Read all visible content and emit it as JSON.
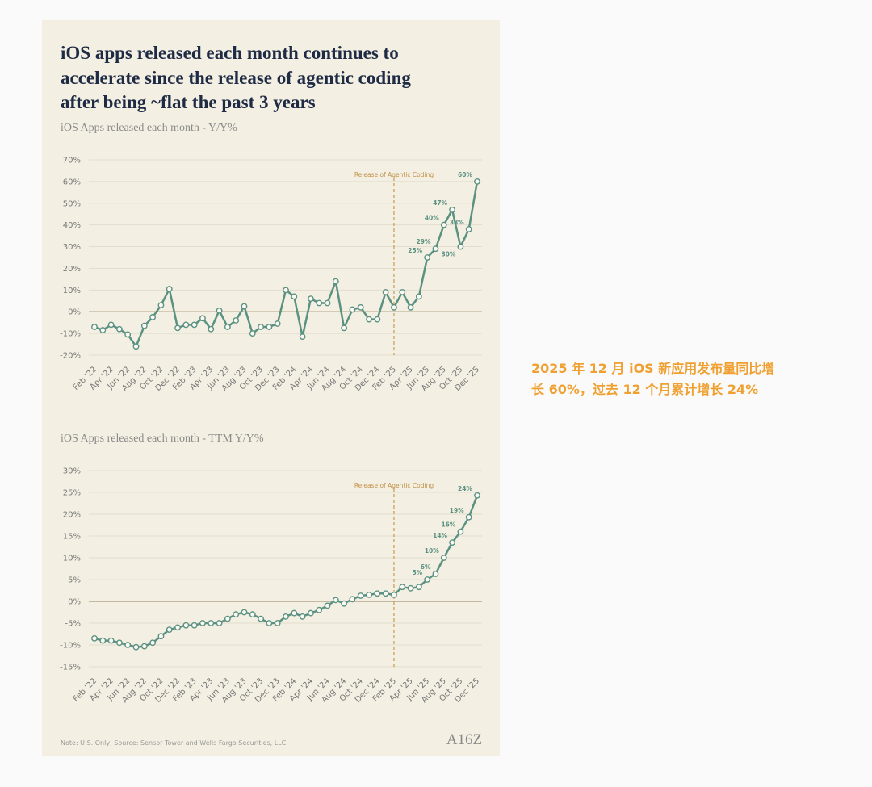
{
  "heading": [
    "iOS apps released each month continues to",
    "accelerate since the release of agentic coding",
    "after being ~flat the past 3 years"
  ],
  "footnote": "Note: U.S. Only; Source: Sensor Tower and Wells Fargo Securities, LLC",
  "logo": "A16Z",
  "side_note": [
    "2025 年 12 月 iOS 新应用发布量同比增",
    "长 60%，过去 12 个月累计增长 24%"
  ],
  "chart_data": [
    {
      "type": "line",
      "title": "iOS Apps released each month - Y/Y%",
      "categories": [
        "Feb '22",
        null,
        "Apr '22",
        null,
        "Jun '22",
        null,
        "Aug '22",
        null,
        "Oct '22",
        null,
        "Dec '22",
        null,
        "Feb '23",
        null,
        "Apr '23",
        null,
        "Jun '23",
        null,
        "Aug '23",
        null,
        "Oct '23",
        null,
        "Dec '23",
        null,
        "Feb '24",
        null,
        "Apr '24",
        null,
        "Jun '24",
        null,
        "Aug '24",
        null,
        "Oct '24",
        null,
        "Dec '24",
        null,
        "Feb '25",
        null,
        "Apr '25",
        null,
        "Jun '25",
        null,
        "Aug '25",
        null,
        "Oct '25",
        null,
        "Dec '25"
      ],
      "series": [
        {
          "name": "Y/Y%",
          "color": "#5a9181",
          "values": [
            -7,
            -8.5,
            -6,
            -8,
            -10.5,
            -16,
            -6.5,
            -2.5,
            3,
            10.5,
            -7.5,
            -6,
            -6,
            -3,
            -8,
            0.5,
            -7,
            -4,
            2.5,
            -10,
            -7,
            -7,
            -5.5,
            10,
            7,
            -11.5,
            6,
            4,
            4,
            14,
            -7.5,
            1,
            2,
            -3.5,
            -3.5,
            9,
            2,
            9,
            2,
            7,
            25,
            29,
            40,
            47,
            30,
            38,
            60
          ],
          "value_labels": [
            null,
            null,
            null,
            null,
            null,
            null,
            null,
            null,
            null,
            null,
            null,
            null,
            null,
            null,
            null,
            null,
            null,
            null,
            null,
            null,
            null,
            null,
            null,
            null,
            null,
            null,
            null,
            null,
            null,
            null,
            null,
            null,
            null,
            null,
            null,
            null,
            null,
            null,
            null,
            null,
            "25%",
            "29%",
            "40%",
            "47%",
            "30%",
            "38%",
            "60%"
          ]
        }
      ],
      "ylim": [
        -20,
        70
      ],
      "yticks": [
        {
          "value": -20,
          "label": "-20%"
        },
        {
          "value": -10,
          "label": "-10%"
        },
        {
          "value": 0,
          "label": "0%"
        },
        {
          "value": 10,
          "label": "10%"
        },
        {
          "value": 20,
          "label": "20%"
        },
        {
          "value": 30,
          "label": "30%"
        },
        {
          "value": 40,
          "label": "40%"
        },
        {
          "value": 50,
          "label": "50%"
        },
        {
          "value": 60,
          "label": "60%"
        },
        {
          "value": 70,
          "label": "70%"
        }
      ],
      "grid": true,
      "annotation": {
        "text": "Release of Agentic Coding",
        "x": "Feb '25"
      }
    },
    {
      "type": "line",
      "title": "iOS Apps released each month - TTM Y/Y%",
      "categories": [
        "Feb '22",
        null,
        "Apr '22",
        null,
        "Jun '22",
        null,
        "Aug '22",
        null,
        "Oct '22",
        null,
        "Dec '22",
        null,
        "Feb '23",
        null,
        "Apr '23",
        null,
        "Jun '23",
        null,
        "Aug '23",
        null,
        "Oct '23",
        null,
        "Dec '23",
        null,
        "Feb '24",
        null,
        "Apr '24",
        null,
        "Jun '24",
        null,
        "Aug '24",
        null,
        "Oct '24",
        null,
        "Dec '24",
        null,
        "Feb '25",
        null,
        "Apr '25",
        null,
        "Jun '25",
        null,
        "Aug '25",
        null,
        "Oct '25",
        null,
        "Dec '25"
      ],
      "series": [
        {
          "name": "TTM Y/Y%",
          "color": "#5a9181",
          "values": [
            -8.5,
            -9,
            -9,
            -9.5,
            -10,
            -10.5,
            -10.3,
            -9.5,
            -8,
            -6.5,
            -6,
            -5.5,
            -5.5,
            -5,
            -5,
            -5,
            -4,
            -3,
            -2.5,
            -3,
            -4,
            -5,
            -5,
            -3.5,
            -2.7,
            -3.5,
            -2.7,
            -2,
            -1,
            0.3,
            -0.5,
            0.5,
            1.3,
            1.5,
            1.8,
            1.8,
            1.5,
            3.3,
            3,
            3.3,
            5,
            6.3,
            10,
            13.5,
            16,
            19.3,
            24.3
          ],
          "value_labels": [
            null,
            null,
            null,
            null,
            null,
            null,
            null,
            null,
            null,
            null,
            null,
            null,
            null,
            null,
            null,
            null,
            null,
            null,
            null,
            null,
            null,
            null,
            null,
            null,
            null,
            null,
            null,
            null,
            null,
            null,
            null,
            null,
            null,
            null,
            null,
            null,
            null,
            null,
            null,
            null,
            "5%",
            "6%",
            "10%",
            "14%",
            "16%",
            "19%",
            "24%"
          ]
        }
      ],
      "ylim": [
        -15,
        30
      ],
      "yticks": [
        {
          "value": -15,
          "label": "-15%"
        },
        {
          "value": -10,
          "label": "-10%"
        },
        {
          "value": -5,
          "label": "-5%"
        },
        {
          "value": 0,
          "label": "0%"
        },
        {
          "value": 5,
          "label": "5%"
        },
        {
          "value": 10,
          "label": "10%"
        },
        {
          "value": 15,
          "label": "15%"
        },
        {
          "value": 20,
          "label": "20%"
        },
        {
          "value": 25,
          "label": "25%"
        },
        {
          "value": 30,
          "label": "30%"
        }
      ],
      "grid": true,
      "annotation": {
        "text": "Release of Agentic Coding",
        "x": "Feb '25"
      }
    }
  ]
}
